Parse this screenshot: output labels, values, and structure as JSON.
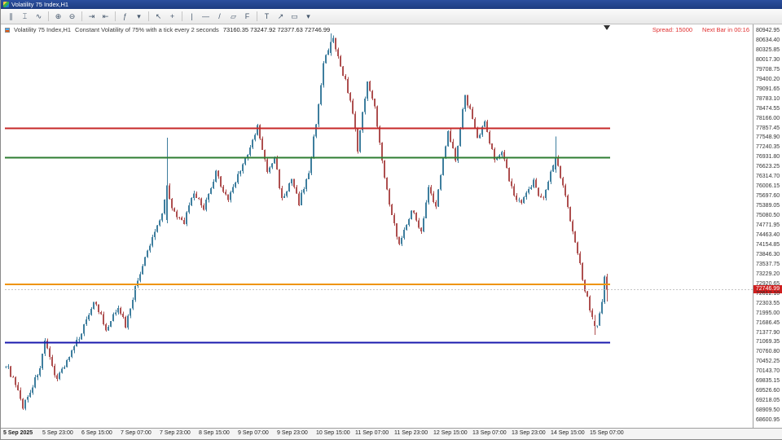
{
  "window": {
    "title": "Volatility 75 Index,H1"
  },
  "toolbar": {
    "groups": [
      {
        "items": [
          {
            "name": "bars-chart",
            "glyph": "∥"
          },
          {
            "name": "candlestick-chart",
            "glyph": "⌶"
          },
          {
            "name": "line-chart",
            "glyph": "∿"
          }
        ]
      },
      {
        "items": [
          {
            "name": "zoom-in",
            "glyph": "⊕"
          },
          {
            "name": "zoom-out",
            "glyph": "⊖"
          }
        ]
      },
      {
        "items": [
          {
            "name": "auto-scroll",
            "glyph": "⇥"
          },
          {
            "name": "chart-shift",
            "glyph": "⇤"
          }
        ]
      },
      {
        "items": [
          {
            "name": "indicators",
            "glyph": "ƒ"
          },
          {
            "name": "indicators-list",
            "glyph": "▾"
          }
        ]
      },
      {
        "items": [
          {
            "name": "cursor",
            "glyph": "↖"
          },
          {
            "name": "crosshair",
            "glyph": "+"
          }
        ]
      },
      {
        "items": [
          {
            "name": "vertical-line",
            "glyph": "|"
          },
          {
            "name": "horizontal-line",
            "glyph": "—"
          },
          {
            "name": "trend-line",
            "glyph": "/"
          },
          {
            "name": "equidistant-channel",
            "glyph": "▱"
          },
          {
            "name": "fibonacci-retracement",
            "glyph": "F"
          }
        ]
      },
      {
        "items": [
          {
            "name": "text-label",
            "glyph": "T"
          },
          {
            "name": "arrow-object",
            "glyph": "↗"
          },
          {
            "name": "shapes",
            "glyph": "▭"
          },
          {
            "name": "objects-list",
            "glyph": "▾"
          }
        ]
      }
    ]
  },
  "chart": {
    "symbol_label": "Volatility 75 Index,H1",
    "description": "Constant Volatility of 75% with a tick every 2 seconds",
    "ohlc_text": "73160.35 73247.92 72377.63 72746.99",
    "spread": "Spread: 15000",
    "next_bar": "Next Bar in 00:16",
    "current_price_label": "72746.99"
  },
  "chart_data": {
    "type": "candlestick",
    "symbol": "Volatility 75 Index",
    "timeframe": "H1",
    "title": "Volatility 75 Index,H1",
    "grid": false,
    "x_labels": [
      "5 Sep 2025",
      "5 Sep 23:00",
      "6 Sep 15:00",
      "7 Sep 07:00",
      "7 Sep 23:00",
      "8 Sep 15:00",
      "9 Sep 07:00",
      "9 Sep 23:00",
      "10 Sep 15:00",
      "11 Sep 07:00",
      "11 Sep 23:00",
      "12 Sep 15:00",
      "13 Sep 07:00",
      "13 Sep 23:00",
      "14 Sep 15:00",
      "15 Sep 07:00"
    ],
    "candles_per_label": 16,
    "y_ticks": [
      80942.95,
      80634.4,
      80325.85,
      80017.3,
      79708.75,
      79400.2,
      79091.65,
      78783.1,
      78474.55,
      78166.0,
      77857.45,
      77548.9,
      77240.35,
      76931.8,
      76623.25,
      76314.7,
      76006.15,
      75697.6,
      75389.05,
      75080.5,
      74771.95,
      74463.4,
      74154.85,
      73846.3,
      73537.75,
      73229.2,
      72920.65,
      72612.1,
      72303.55,
      71995.0,
      71686.45,
      71377.9,
      71069.35,
      70760.8,
      70452.25,
      70143.7,
      69835.15,
      69526.6,
      69218.05,
      68909.5,
      68600.95
    ],
    "price_step": 308.55,
    "y_render": {
      "max": 81150,
      "min": 68500
    },
    "last_candle_ohlc": {
      "open": 73160.35,
      "high": 73247.92,
      "low": 72377.63,
      "close": 72746.99
    },
    "current_price": 72746.99,
    "horizontal_lines": [
      {
        "name": "red-hline",
        "price": 77857.45,
        "color": "#c62828",
        "width": 2
      },
      {
        "name": "green-hline",
        "price": 76931.8,
        "color": "#2e7d32",
        "width": 2
      },
      {
        "name": "orange-hline",
        "price": 72920.65,
        "color": "#ef9408",
        "width": 2
      },
      {
        "name": "blue-hline",
        "price": 71069.35,
        "color": "#1a1aae",
        "width": 2
      }
    ],
    "candle_count": 247,
    "candles_estimated": true,
    "trend_anchors": [
      [
        0,
        70400
      ],
      [
        3,
        69900
      ],
      [
        7,
        69050
      ],
      [
        11,
        69700
      ],
      [
        14,
        70300
      ],
      [
        16,
        71050
      ],
      [
        19,
        70300
      ],
      [
        21,
        69950
      ],
      [
        25,
        70500
      ],
      [
        28,
        70900
      ],
      [
        32,
        71600
      ],
      [
        36,
        72400
      ],
      [
        39,
        71900
      ],
      [
        41,
        71400
      ],
      [
        44,
        71900
      ],
      [
        46,
        72250
      ],
      [
        49,
        71600
      ],
      [
        53,
        72800
      ],
      [
        56,
        73500
      ],
      [
        61,
        74600
      ],
      [
        64,
        75200
      ],
      [
        66,
        76000
      ],
      [
        68,
        75400
      ],
      [
        70,
        75000
      ],
      [
        73,
        74900
      ],
      [
        77,
        75800
      ],
      [
        81,
        75350
      ],
      [
        84,
        75900
      ],
      [
        86,
        76450
      ],
      [
        89,
        75900
      ],
      [
        91,
        75600
      ],
      [
        94,
        76200
      ],
      [
        96,
        76570
      ],
      [
        99,
        77000
      ],
      [
        103,
        77900
      ],
      [
        105,
        77200
      ],
      [
        107,
        76450
      ],
      [
        110,
        76940
      ],
      [
        113,
        75600
      ],
      [
        117,
        76200
      ],
      [
        120,
        75500
      ],
      [
        124,
        76450
      ],
      [
        127,
        78050
      ],
      [
        130,
        79900
      ],
      [
        132,
        80300
      ],
      [
        134,
        80650
      ],
      [
        137,
        79800
      ],
      [
        139,
        79400
      ],
      [
        142,
        78300
      ],
      [
        144,
        77200
      ],
      [
        146,
        78300
      ],
      [
        148,
        79400
      ],
      [
        151,
        78500
      ],
      [
        153,
        77450
      ],
      [
        156,
        75850
      ],
      [
        159,
        74800
      ],
      [
        161,
        74200
      ],
      [
        164,
        74800
      ],
      [
        166,
        75340
      ],
      [
        168,
        74900
      ],
      [
        170,
        74650
      ],
      [
        173,
        75950
      ],
      [
        176,
        75350
      ],
      [
        179,
        76900
      ],
      [
        181,
        77850
      ],
      [
        184,
        76850
      ],
      [
        186,
        77900
      ],
      [
        188,
        78900
      ],
      [
        191,
        78200
      ],
      [
        193,
        77550
      ],
      [
        196,
        78050
      ],
      [
        198,
        77400
      ],
      [
        200,
        76850
      ],
      [
        203,
        77200
      ],
      [
        207,
        75950
      ],
      [
        209,
        75600
      ],
      [
        211,
        75450
      ],
      [
        214,
        75900
      ],
      [
        216,
        76200
      ],
      [
        218,
        75800
      ],
      [
        220,
        75600
      ],
      [
        223,
        76500
      ],
      [
        225,
        76900
      ],
      [
        228,
        76100
      ],
      [
        231,
        75000
      ],
      [
        234,
        73900
      ],
      [
        237,
        72750
      ],
      [
        240,
        71900
      ],
      [
        242,
        71550
      ],
      [
        244,
        72400
      ],
      [
        245,
        73160
      ],
      [
        246,
        72747
      ]
    ],
    "noise_amp": 90,
    "wick_amp": 90,
    "candle_overrides": {
      "66": [
        74950,
        77560,
        74850,
        76050
      ],
      "133": [
        80250,
        80870,
        80150,
        80600
      ],
      "225": [
        76550,
        77600,
        76450,
        76950
      ],
      "241": [
        71750,
        71950,
        71320,
        71600
      ],
      "245": [
        72350,
        73200,
        72300,
        73160.35
      ],
      "246": [
        73160.35,
        73247.92,
        72377.63,
        72746.99
      ]
    },
    "colors": {
      "up": "#3e7e9e",
      "down": "#ae4f4f",
      "background": "#ffffff",
      "axis_text": "#333333",
      "price_line": "#c4c4c4",
      "badge": "#cf1f1f"
    }
  }
}
